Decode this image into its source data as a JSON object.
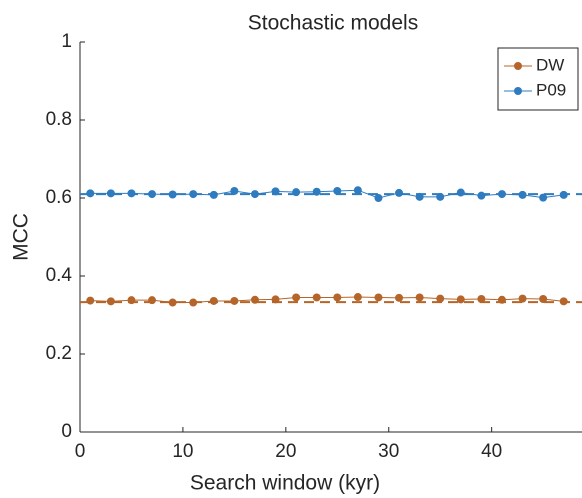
{
  "chart_data": {
    "type": "line",
    "title": "Stochastic models",
    "x_label": "Search window (kyr)",
    "y_label": "MCC",
    "x": [
      1,
      3,
      5,
      7,
      9,
      11,
      13,
      15,
      17,
      19,
      21,
      23,
      25,
      27,
      29,
      31,
      33,
      35,
      37,
      39,
      41,
      43,
      45,
      47
    ],
    "series": [
      {
        "name": "DW",
        "color": "#b5652a",
        "values": [
          0.337,
          0.335,
          0.338,
          0.338,
          0.332,
          0.332,
          0.336,
          0.336,
          0.339,
          0.34,
          0.345,
          0.345,
          0.345,
          0.346,
          0.345,
          0.344,
          0.345,
          0.342,
          0.34,
          0.341,
          0.339,
          0.342,
          0.341,
          0.335
        ]
      },
      {
        "name": "P09",
        "color": "#2f7bbf",
        "values": [
          0.612,
          0.612,
          0.612,
          0.61,
          0.609,
          0.61,
          0.608,
          0.618,
          0.61,
          0.617,
          0.615,
          0.616,
          0.618,
          0.62,
          0.6,
          0.613,
          0.603,
          0.603,
          0.614,
          0.606,
          0.61,
          0.608,
          0.601,
          0.608
        ]
      }
    ],
    "reference_lines": [
      {
        "value": 0.333,
        "color": "#b5652a"
      },
      {
        "value": 0.61,
        "color": "#2f7bbf"
      }
    ],
    "xlim": [
      0,
      48
    ],
    "ylim": [
      0,
      1
    ],
    "xticks": [
      0,
      10,
      20,
      30,
      40
    ],
    "yticks": [
      0,
      0.2,
      0.4,
      0.6,
      0.8,
      1
    ],
    "legend": "top-right"
  }
}
